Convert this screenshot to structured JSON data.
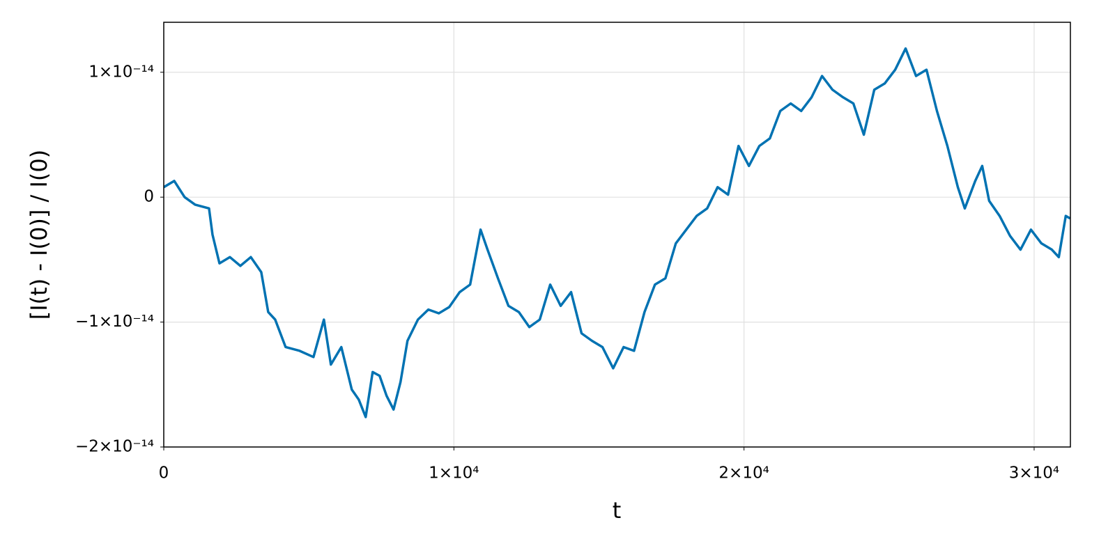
{
  "chart_data": {
    "type": "line",
    "x_label": "t",
    "y_label": "[I(t) - I(0)] / I(0)",
    "x": [
      0,
      360,
      720,
      1080,
      1560,
      1680,
      1920,
      2280,
      2640,
      3000,
      3360,
      3600,
      3840,
      4200,
      4680,
      5160,
      5520,
      5760,
      6120,
      6480,
      6720,
      6960,
      7200,
      7440,
      7680,
      7920,
      8160,
      8400,
      8760,
      9120,
      9480,
      9840,
      10200,
      10560,
      10920,
      11160,
      11520,
      11880,
      12240,
      12600,
      12960,
      13320,
      13680,
      14040,
      14400,
      14760,
      15120,
      15490,
      15850,
      16210,
      16570,
      16930,
      17290,
      17650,
      18010,
      18370,
      18730,
      19090,
      19450,
      19810,
      20170,
      20530,
      20890,
      21250,
      21610,
      21970,
      22330,
      22690,
      23050,
      23410,
      23770,
      24130,
      24490,
      24850,
      25210,
      25570,
      25930,
      26290,
      26650,
      27010,
      27370,
      27610,
      27970,
      28210,
      28450,
      28810,
      29170,
      29530,
      29890,
      30250,
      30610,
      30850,
      31090,
      31240
    ],
    "series": [
      {
        "color": "#0072b2",
        "values": [
          8e-16,
          1.3e-15,
          0,
          -6e-16,
          -9e-16,
          -3e-15,
          -5.3e-15,
          -4.8e-15,
          -5.5e-15,
          -4.8e-15,
          -6e-15,
          -9.2e-15,
          -9.8e-15,
          -1.2e-14,
          -1.23e-14,
          -1.28e-14,
          -9.8e-15,
          -1.34e-14,
          -1.2e-14,
          -1.54e-14,
          -1.62e-14,
          -1.76e-14,
          -1.4e-14,
          -1.43e-14,
          -1.59e-14,
          -1.7e-14,
          -1.48e-14,
          -1.15e-14,
          -9.8e-15,
          -9e-15,
          -9.3e-15,
          -8.8e-15,
          -7.6e-15,
          -7e-15,
          -2.6e-15,
          -4.2e-15,
          -6.5e-15,
          -8.7e-15,
          -9.2e-15,
          -1.04e-14,
          -9.8e-15,
          -7e-15,
          -8.7e-15,
          -7.6e-15,
          -1.09e-14,
          -1.15e-14,
          -1.2e-14,
          -1.37e-14,
          -1.2e-14,
          -1.23e-14,
          -9.2e-15,
          -7e-15,
          -6.5e-15,
          -3.7e-15,
          -2.6e-15,
          -1.5e-15,
          -9e-16,
          8e-16,
          2e-16,
          4.1e-15,
          2.5e-15,
          4.1e-15,
          4.7e-15,
          6.9e-15,
          7.5e-15,
          6.9e-15,
          8e-15,
          9.7e-15,
          8.6e-15,
          8e-15,
          7.5e-15,
          5e-15,
          8.6e-15,
          9.1e-15,
          1.02e-14,
          1.19e-14,
          9.7e-15,
          1.02e-14,
          6.9e-15,
          4.1e-15,
          8e-16,
          -9e-16,
          1.3e-15,
          2.5e-15,
          -3e-16,
          -1.5e-15,
          -3.1e-15,
          -4.2e-15,
          -2.6e-15,
          -3.7e-15,
          -4.2e-15,
          -4.8e-15,
          -1.5e-15,
          -1.7e-15
        ]
      }
    ],
    "xlim": [
      0,
      31250
    ],
    "ylim": [
      -2e-14,
      1.4e-14
    ],
    "xticks": [
      0,
      {
        "value": 10000,
        "label": "1×10⁴"
      },
      {
        "value": 20000,
        "label": "2×10⁴"
      },
      {
        "value": 30000,
        "label": "3×10⁴"
      }
    ],
    "yticks": [
      {
        "value": -2e-14,
        "label": "−2×10⁻¹⁴"
      },
      {
        "value": -1e-14,
        "label": "−1×10⁻¹⁴"
      },
      0,
      {
        "value": 1e-14,
        "label": "1×10⁻¹⁴"
      }
    ],
    "grid": true
  }
}
